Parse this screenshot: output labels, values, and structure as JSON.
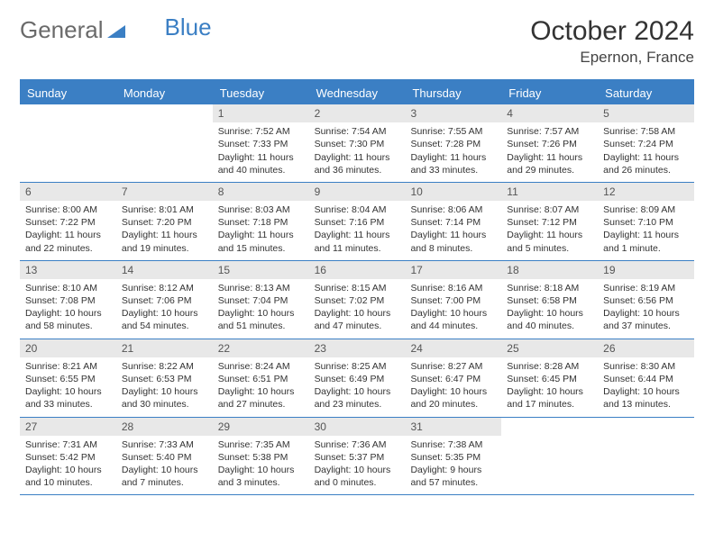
{
  "logo": {
    "part1": "General",
    "part2": "Blue"
  },
  "header": {
    "title": "October 2024",
    "location": "Epernon, France"
  },
  "colors": {
    "accent": "#3b7fc4",
    "headerText": "#ffffff",
    "dayBar": "#e8e8e8"
  },
  "dayNames": [
    "Sunday",
    "Monday",
    "Tuesday",
    "Wednesday",
    "Thursday",
    "Friday",
    "Saturday"
  ],
  "weeks": [
    [
      {
        "day": "",
        "sunrise": "",
        "sunset": "",
        "daylight": ""
      },
      {
        "day": "",
        "sunrise": "",
        "sunset": "",
        "daylight": ""
      },
      {
        "day": "1",
        "sunrise": "Sunrise: 7:52 AM",
        "sunset": "Sunset: 7:33 PM",
        "daylight": "Daylight: 11 hours and 40 minutes."
      },
      {
        "day": "2",
        "sunrise": "Sunrise: 7:54 AM",
        "sunset": "Sunset: 7:30 PM",
        "daylight": "Daylight: 11 hours and 36 minutes."
      },
      {
        "day": "3",
        "sunrise": "Sunrise: 7:55 AM",
        "sunset": "Sunset: 7:28 PM",
        "daylight": "Daylight: 11 hours and 33 minutes."
      },
      {
        "day": "4",
        "sunrise": "Sunrise: 7:57 AM",
        "sunset": "Sunset: 7:26 PM",
        "daylight": "Daylight: 11 hours and 29 minutes."
      },
      {
        "day": "5",
        "sunrise": "Sunrise: 7:58 AM",
        "sunset": "Sunset: 7:24 PM",
        "daylight": "Daylight: 11 hours and 26 minutes."
      }
    ],
    [
      {
        "day": "6",
        "sunrise": "Sunrise: 8:00 AM",
        "sunset": "Sunset: 7:22 PM",
        "daylight": "Daylight: 11 hours and 22 minutes."
      },
      {
        "day": "7",
        "sunrise": "Sunrise: 8:01 AM",
        "sunset": "Sunset: 7:20 PM",
        "daylight": "Daylight: 11 hours and 19 minutes."
      },
      {
        "day": "8",
        "sunrise": "Sunrise: 8:03 AM",
        "sunset": "Sunset: 7:18 PM",
        "daylight": "Daylight: 11 hours and 15 minutes."
      },
      {
        "day": "9",
        "sunrise": "Sunrise: 8:04 AM",
        "sunset": "Sunset: 7:16 PM",
        "daylight": "Daylight: 11 hours and 11 minutes."
      },
      {
        "day": "10",
        "sunrise": "Sunrise: 8:06 AM",
        "sunset": "Sunset: 7:14 PM",
        "daylight": "Daylight: 11 hours and 8 minutes."
      },
      {
        "day": "11",
        "sunrise": "Sunrise: 8:07 AM",
        "sunset": "Sunset: 7:12 PM",
        "daylight": "Daylight: 11 hours and 5 minutes."
      },
      {
        "day": "12",
        "sunrise": "Sunrise: 8:09 AM",
        "sunset": "Sunset: 7:10 PM",
        "daylight": "Daylight: 11 hours and 1 minute."
      }
    ],
    [
      {
        "day": "13",
        "sunrise": "Sunrise: 8:10 AM",
        "sunset": "Sunset: 7:08 PM",
        "daylight": "Daylight: 10 hours and 58 minutes."
      },
      {
        "day": "14",
        "sunrise": "Sunrise: 8:12 AM",
        "sunset": "Sunset: 7:06 PM",
        "daylight": "Daylight: 10 hours and 54 minutes."
      },
      {
        "day": "15",
        "sunrise": "Sunrise: 8:13 AM",
        "sunset": "Sunset: 7:04 PM",
        "daylight": "Daylight: 10 hours and 51 minutes."
      },
      {
        "day": "16",
        "sunrise": "Sunrise: 8:15 AM",
        "sunset": "Sunset: 7:02 PM",
        "daylight": "Daylight: 10 hours and 47 minutes."
      },
      {
        "day": "17",
        "sunrise": "Sunrise: 8:16 AM",
        "sunset": "Sunset: 7:00 PM",
        "daylight": "Daylight: 10 hours and 44 minutes."
      },
      {
        "day": "18",
        "sunrise": "Sunrise: 8:18 AM",
        "sunset": "Sunset: 6:58 PM",
        "daylight": "Daylight: 10 hours and 40 minutes."
      },
      {
        "day": "19",
        "sunrise": "Sunrise: 8:19 AM",
        "sunset": "Sunset: 6:56 PM",
        "daylight": "Daylight: 10 hours and 37 minutes."
      }
    ],
    [
      {
        "day": "20",
        "sunrise": "Sunrise: 8:21 AM",
        "sunset": "Sunset: 6:55 PM",
        "daylight": "Daylight: 10 hours and 33 minutes."
      },
      {
        "day": "21",
        "sunrise": "Sunrise: 8:22 AM",
        "sunset": "Sunset: 6:53 PM",
        "daylight": "Daylight: 10 hours and 30 minutes."
      },
      {
        "day": "22",
        "sunrise": "Sunrise: 8:24 AM",
        "sunset": "Sunset: 6:51 PM",
        "daylight": "Daylight: 10 hours and 27 minutes."
      },
      {
        "day": "23",
        "sunrise": "Sunrise: 8:25 AM",
        "sunset": "Sunset: 6:49 PM",
        "daylight": "Daylight: 10 hours and 23 minutes."
      },
      {
        "day": "24",
        "sunrise": "Sunrise: 8:27 AM",
        "sunset": "Sunset: 6:47 PM",
        "daylight": "Daylight: 10 hours and 20 minutes."
      },
      {
        "day": "25",
        "sunrise": "Sunrise: 8:28 AM",
        "sunset": "Sunset: 6:45 PM",
        "daylight": "Daylight: 10 hours and 17 minutes."
      },
      {
        "day": "26",
        "sunrise": "Sunrise: 8:30 AM",
        "sunset": "Sunset: 6:44 PM",
        "daylight": "Daylight: 10 hours and 13 minutes."
      }
    ],
    [
      {
        "day": "27",
        "sunrise": "Sunrise: 7:31 AM",
        "sunset": "Sunset: 5:42 PM",
        "daylight": "Daylight: 10 hours and 10 minutes."
      },
      {
        "day": "28",
        "sunrise": "Sunrise: 7:33 AM",
        "sunset": "Sunset: 5:40 PM",
        "daylight": "Daylight: 10 hours and 7 minutes."
      },
      {
        "day": "29",
        "sunrise": "Sunrise: 7:35 AM",
        "sunset": "Sunset: 5:38 PM",
        "daylight": "Daylight: 10 hours and 3 minutes."
      },
      {
        "day": "30",
        "sunrise": "Sunrise: 7:36 AM",
        "sunset": "Sunset: 5:37 PM",
        "daylight": "Daylight: 10 hours and 0 minutes."
      },
      {
        "day": "31",
        "sunrise": "Sunrise: 7:38 AM",
        "sunset": "Sunset: 5:35 PM",
        "daylight": "Daylight: 9 hours and 57 minutes."
      },
      {
        "day": "",
        "sunrise": "",
        "sunset": "",
        "daylight": ""
      },
      {
        "day": "",
        "sunrise": "",
        "sunset": "",
        "daylight": ""
      }
    ]
  ]
}
